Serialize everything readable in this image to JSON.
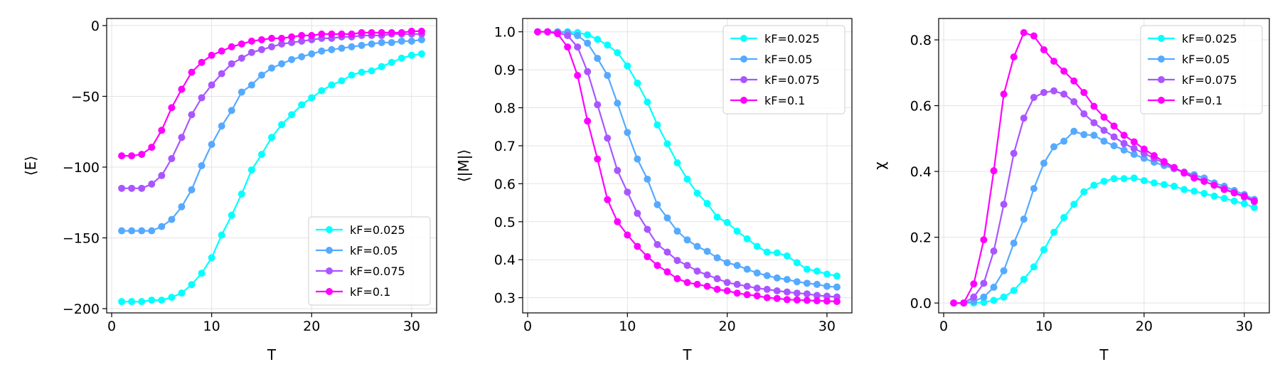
{
  "chart_data": [
    {
      "type": "line",
      "xlabel": "T",
      "ylabel": "⟨E⟩",
      "xlim": [
        -0.5,
        32.5
      ],
      "ylim": [
        -203,
        5
      ],
      "xticks": [
        0,
        10,
        20,
        30
      ],
      "yticks": [
        0,
        -50,
        -100,
        -150,
        -200
      ],
      "ytick_labels": [
        "0",
        "−50",
        "−100",
        "−150",
        "−200"
      ],
      "grid": true,
      "legend_loc": "lower-right",
      "x": [
        1,
        2,
        3,
        4,
        5,
        6,
        7,
        8,
        9,
        10,
        11,
        12,
        13,
        14,
        15,
        16,
        17,
        18,
        19,
        20,
        21,
        22,
        23,
        24,
        25,
        26,
        27,
        28,
        29,
        30,
        31
      ],
      "series": [
        {
          "name": "kF=0.025",
          "color": "#00ffff",
          "values": [
            -195,
            -195,
            -195,
            -194,
            -194,
            -192,
            -189,
            -183,
            -175,
            -164,
            -148,
            -134,
            -119,
            -102,
            -91,
            -79,
            -70,
            -63,
            -56,
            -51,
            -46,
            -42,
            -39,
            -35,
            -33,
            -32,
            -29,
            -26,
            -23,
            -21,
            -20
          ]
        },
        {
          "name": "kF=0.05",
          "color": "#55aaff",
          "values": [
            -145,
            -145,
            -145,
            -145,
            -142,
            -137,
            -128,
            -116,
            -99,
            -84,
            -71,
            -60,
            -47,
            -42,
            -35,
            -30,
            -27,
            -24,
            -22,
            -20,
            -18,
            -17,
            -16,
            -15,
            -14,
            -13,
            -12,
            -12,
            -11,
            -11,
            -10
          ]
        },
        {
          "name": "kF=0.075",
          "color": "#aa55ff",
          "values": [
            -115,
            -115,
            -115,
            -112,
            -106,
            -94,
            -79,
            -63,
            -51,
            -42,
            -34,
            -27,
            -23,
            -19,
            -17,
            -15,
            -13,
            -12,
            -11,
            -10,
            -9,
            -9,
            -8,
            -8,
            -7,
            -7,
            -7,
            -6,
            -6,
            -6,
            -6
          ]
        },
        {
          "name": "kF=0.1",
          "color": "#ff00ff",
          "values": [
            -92,
            -92,
            -91,
            -86,
            -74,
            -58,
            -45,
            -33,
            -26,
            -21,
            -18,
            -15,
            -13,
            -11,
            -10,
            -9,
            -9,
            -8,
            -7,
            -7,
            -6,
            -6,
            -6,
            -6,
            -5,
            -5,
            -5,
            -5,
            -5,
            -4,
            -4
          ]
        }
      ]
    },
    {
      "type": "line",
      "xlabel": "T",
      "ylabel": "⟨|M|⟩",
      "xlim": [
        -0.5,
        32.5
      ],
      "ylim": [
        0.26,
        1.035
      ],
      "xticks": [
        0,
        10,
        20,
        30
      ],
      "yticks": [
        0.3,
        0.4,
        0.5,
        0.6,
        0.7,
        0.8,
        0.9,
        1.0
      ],
      "ytick_labels": [
        "0.3",
        "0.4",
        "0.5",
        "0.6",
        "0.7",
        "0.8",
        "0.9",
        "1.0"
      ],
      "grid": true,
      "legend_loc": "upper-right",
      "x": [
        1,
        2,
        3,
        4,
        5,
        6,
        7,
        8,
        9,
        10,
        11,
        12,
        13,
        14,
        15,
        16,
        17,
        18,
        19,
        20,
        21,
        22,
        23,
        24,
        25,
        26,
        27,
        28,
        29,
        30,
        31
      ],
      "series": [
        {
          "name": "kF=0.025",
          "color": "#00ffff",
          "values": [
            1.0,
            1.0,
            1.0,
            1.0,
            0.998,
            0.992,
            0.98,
            0.965,
            0.945,
            0.91,
            0.865,
            0.815,
            0.755,
            0.705,
            0.655,
            0.612,
            0.575,
            0.548,
            0.512,
            0.498,
            0.475,
            0.455,
            0.435,
            0.42,
            0.418,
            0.41,
            0.392,
            0.375,
            0.37,
            0.362,
            0.357
          ]
        },
        {
          "name": "kF=0.05",
          "color": "#55aaff",
          "values": [
            1.0,
            1.0,
            1.0,
            0.998,
            0.99,
            0.97,
            0.93,
            0.885,
            0.812,
            0.735,
            0.665,
            0.612,
            0.545,
            0.51,
            0.475,
            0.452,
            0.435,
            0.422,
            0.405,
            0.392,
            0.385,
            0.375,
            0.365,
            0.358,
            0.352,
            0.348,
            0.342,
            0.338,
            0.335,
            0.33,
            0.328
          ]
        },
        {
          "name": "kF=0.075",
          "color": "#aa55ff",
          "values": [
            1.0,
            1.0,
            0.998,
            0.99,
            0.96,
            0.895,
            0.808,
            0.72,
            0.635,
            0.578,
            0.522,
            0.48,
            0.44,
            0.42,
            0.398,
            0.385,
            0.37,
            0.36,
            0.35,
            0.34,
            0.335,
            0.33,
            0.325,
            0.322,
            0.318,
            0.315,
            0.312,
            0.31,
            0.306,
            0.304,
            0.302
          ]
        },
        {
          "name": "kF=0.1",
          "color": "#ff00ff",
          "values": [
            1.0,
            1.0,
            0.995,
            0.96,
            0.885,
            0.765,
            0.665,
            0.558,
            0.5,
            0.465,
            0.435,
            0.408,
            0.385,
            0.368,
            0.35,
            0.34,
            0.335,
            0.33,
            0.322,
            0.318,
            0.312,
            0.308,
            0.305,
            0.3,
            0.298,
            0.295,
            0.294,
            0.293,
            0.292,
            0.291,
            0.29
          ]
        }
      ]
    },
    {
      "type": "line",
      "xlabel": "T",
      "ylabel": "χ",
      "xlim": [
        -0.5,
        32.5
      ],
      "ylim": [
        -0.03,
        0.865
      ],
      "xticks": [
        0,
        10,
        20,
        30
      ],
      "yticks": [
        0.0,
        0.2,
        0.4,
        0.6,
        0.8
      ],
      "ytick_labels": [
        "0.0",
        "0.2",
        "0.4",
        "0.6",
        "0.8"
      ],
      "grid": true,
      "legend_loc": "upper-right",
      "x": [
        1,
        2,
        3,
        4,
        5,
        6,
        7,
        8,
        9,
        10,
        11,
        12,
        13,
        14,
        15,
        16,
        17,
        18,
        19,
        20,
        21,
        22,
        23,
        24,
        25,
        26,
        27,
        28,
        29,
        30,
        31
      ],
      "series": [
        {
          "name": "kF=0.025",
          "color": "#00ffff",
          "values": [
            0.0,
            0.0,
            0.0,
            0.002,
            0.008,
            0.018,
            0.038,
            0.072,
            0.11,
            0.162,
            0.215,
            0.26,
            0.3,
            0.338,
            0.358,
            0.37,
            0.378,
            0.378,
            0.38,
            0.372,
            0.365,
            0.36,
            0.355,
            0.345,
            0.34,
            0.333,
            0.325,
            0.318,
            0.31,
            0.302,
            0.29
          ]
        },
        {
          "name": "kF=0.05",
          "color": "#55aaff",
          "values": [
            0.0,
            0.0,
            0.005,
            0.018,
            0.048,
            0.098,
            0.182,
            0.255,
            0.348,
            0.425,
            0.475,
            0.492,
            0.522,
            0.512,
            0.51,
            0.492,
            0.478,
            0.465,
            0.452,
            0.44,
            0.428,
            0.418,
            0.408,
            0.398,
            0.39,
            0.38,
            0.365,
            0.355,
            0.342,
            0.33,
            0.315
          ]
        },
        {
          "name": "kF=0.075",
          "color": "#aa55ff",
          "values": [
            0.0,
            0.0,
            0.018,
            0.06,
            0.158,
            0.3,
            0.455,
            0.562,
            0.625,
            0.64,
            0.645,
            0.635,
            0.612,
            0.575,
            0.548,
            0.525,
            0.505,
            0.485,
            0.47,
            0.455,
            0.44,
            0.425,
            0.41,
            0.398,
            0.385,
            0.37,
            0.358,
            0.348,
            0.335,
            0.322,
            0.308
          ]
        },
        {
          "name": "kF=0.1",
          "color": "#ff00ff",
          "values": [
            0.0,
            0.0,
            0.058,
            0.192,
            0.402,
            0.635,
            0.748,
            0.822,
            0.812,
            0.77,
            0.735,
            0.705,
            0.675,
            0.64,
            0.598,
            0.565,
            0.538,
            0.51,
            0.49,
            0.468,
            0.448,
            0.43,
            0.412,
            0.395,
            0.38,
            0.37,
            0.358,
            0.345,
            0.335,
            0.325,
            0.31
          ]
        }
      ]
    }
  ]
}
